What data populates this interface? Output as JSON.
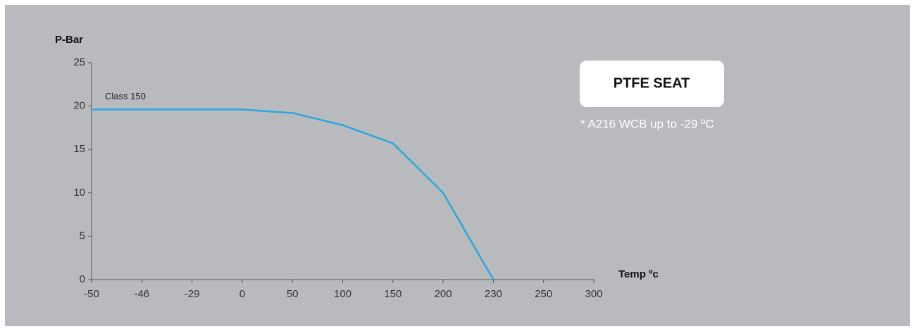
{
  "chart_data": {
    "type": "line",
    "y_label": "P-Bar",
    "x_label": "Temp ºc",
    "badge": "PTFE SEAT",
    "note": "* A216 WCB up to -29 ºC",
    "categories": [
      -50,
      -46,
      -29,
      0,
      50,
      100,
      150,
      200,
      230,
      250,
      300
    ],
    "series": [
      {
        "name": "Class 150",
        "color": "#29a8e0",
        "values": [
          19.6,
          19.6,
          19.6,
          19.6,
          19.2,
          17.8,
          15.7,
          10,
          0,
          null,
          null
        ]
      }
    ],
    "ylim": [
      0,
      25
    ],
    "yticks": [
      0,
      5,
      10,
      15,
      20,
      25
    ],
    "grid": false
  }
}
